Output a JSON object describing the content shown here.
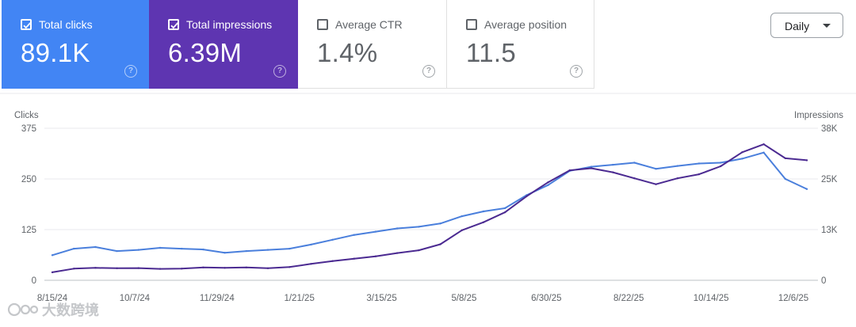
{
  "metrics": [
    {
      "key": "clicks",
      "label": "Total clicks",
      "value": "89.1K",
      "checked": true,
      "color": "#4285f4"
    },
    {
      "key": "impressions",
      "label": "Total impressions",
      "value": "6.39M",
      "checked": true,
      "color": "#5e35b1"
    },
    {
      "key": "ctr",
      "label": "Average CTR",
      "value": "1.4%",
      "checked": false
    },
    {
      "key": "position",
      "label": "Average position",
      "value": "11.5",
      "checked": false
    }
  ],
  "period_select": {
    "value": "Daily"
  },
  "watermark": "大数跨境",
  "chart_data": {
    "type": "line",
    "left_axis_label": "Clicks",
    "right_axis_label": "Impressions",
    "left_ticks": [
      "375",
      "250",
      "125",
      "0"
    ],
    "left_ylim": [
      0,
      375
    ],
    "right_ticks": [
      "38K",
      "25K",
      "13K",
      "0"
    ],
    "right_ylim": [
      0,
      38000
    ],
    "x_tick_labels": [
      "8/15/24",
      "10/7/24",
      "11/29/24",
      "1/21/25",
      "3/15/25",
      "5/8/25",
      "6/30/25",
      "8/22/25",
      "10/14/25",
      "12/6/25"
    ],
    "x": [
      "8/15/24",
      "8/29/24",
      "9/12/24",
      "9/26/24",
      "10/10/24",
      "10/24/24",
      "11/7/24",
      "11/21/24",
      "12/5/24",
      "12/19/24",
      "1/2/25",
      "1/16/25",
      "1/30/25",
      "2/13/25",
      "2/27/25",
      "3/13/25",
      "3/27/25",
      "4/10/25",
      "4/24/25",
      "5/8/25",
      "5/22/25",
      "6/5/25",
      "6/19/25",
      "7/3/25",
      "7/17/25",
      "7/31/25",
      "8/14/25",
      "8/28/25",
      "9/11/25",
      "9/25/25",
      "10/9/25",
      "10/23/25",
      "11/6/25",
      "11/20/25",
      "12/4/25",
      "12/14/25"
    ],
    "series": [
      {
        "name": "Clicks",
        "axis": "left",
        "color": "#4a7fdc",
        "values": [
          62,
          78,
          82,
          72,
          75,
          80,
          78,
          76,
          68,
          72,
          75,
          78,
          88,
          100,
          112,
          120,
          128,
          132,
          140,
          158,
          170,
          178,
          210,
          235,
          270,
          280,
          285,
          290,
          275,
          282,
          288,
          290,
          300,
          315,
          250,
          225
        ]
      },
      {
        "name": "Impressions",
        "axis": "right",
        "color": "#4b2a91",
        "values": [
          2000,
          2900,
          3100,
          3000,
          3050,
          2850,
          2900,
          3200,
          3100,
          3200,
          3000,
          3300,
          4100,
          4800,
          5400,
          6000,
          6800,
          7500,
          9000,
          12500,
          14500,
          17000,
          21000,
          24500,
          27500,
          28000,
          27000,
          25500,
          24000,
          25500,
          26500,
          28500,
          32000,
          34000,
          30500,
          30000
        ]
      }
    ]
  }
}
